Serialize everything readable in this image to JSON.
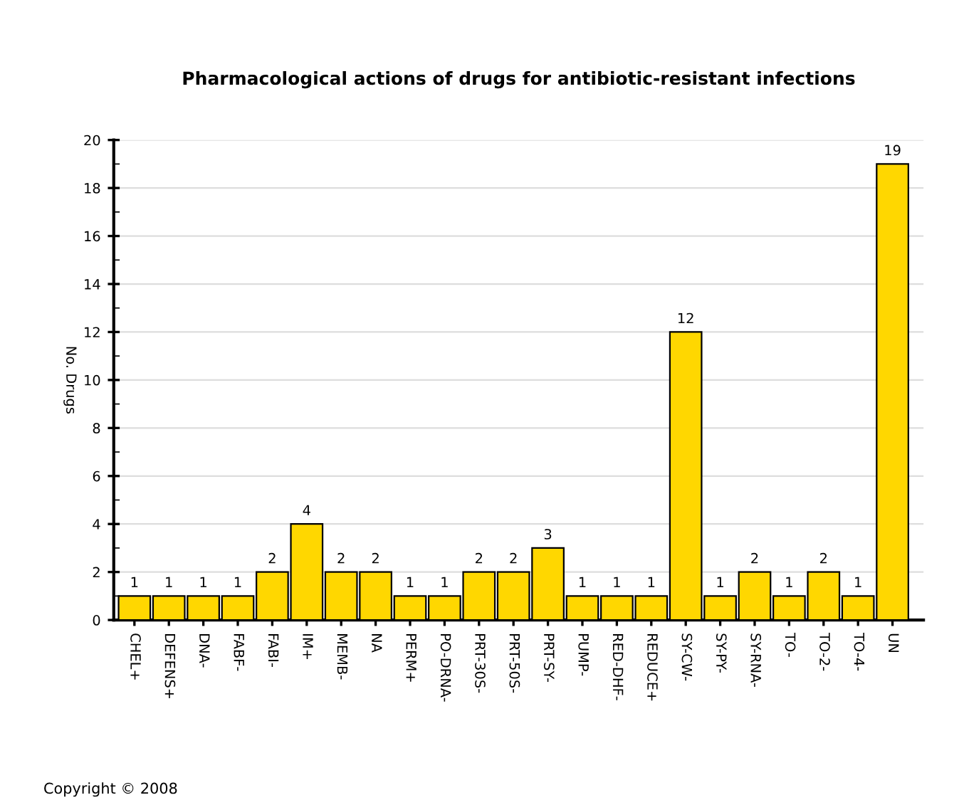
{
  "chart_data": {
    "type": "bar",
    "title": "Pharmacological actions of drugs for antibiotic-resistant infections",
    "ylabel": "No. Drugs",
    "categories": [
      "CHEL+",
      "DEFENS+",
      "DNA-",
      "FABF-",
      "FABI-",
      "IM+",
      "MEMB-",
      "NA",
      "PERM+",
      "PO-DRNA-",
      "PRT-30S-",
      "PRT-50S-",
      "PRT-SY-",
      "PUMP-",
      "RED-DHF-",
      "REDUCE+",
      "SY-CW-",
      "SY-PY-",
      "SY-RNA-",
      "TO-",
      "TO-2-",
      "TO-4-",
      "UN"
    ],
    "values": [
      1,
      1,
      1,
      1,
      2,
      4,
      2,
      2,
      1,
      1,
      2,
      2,
      3,
      1,
      1,
      1,
      12,
      1,
      2,
      1,
      2,
      1,
      19
    ],
    "color": "#ffd700",
    "ylim": [
      0,
      20
    ],
    "yticks": [
      0,
      2,
      4,
      6,
      8,
      10,
      12,
      14,
      16,
      18,
      20
    ],
    "grid": "y",
    "data_labels": true,
    "legend": false,
    "annotations": [
      "Copyright © 2008"
    ]
  }
}
